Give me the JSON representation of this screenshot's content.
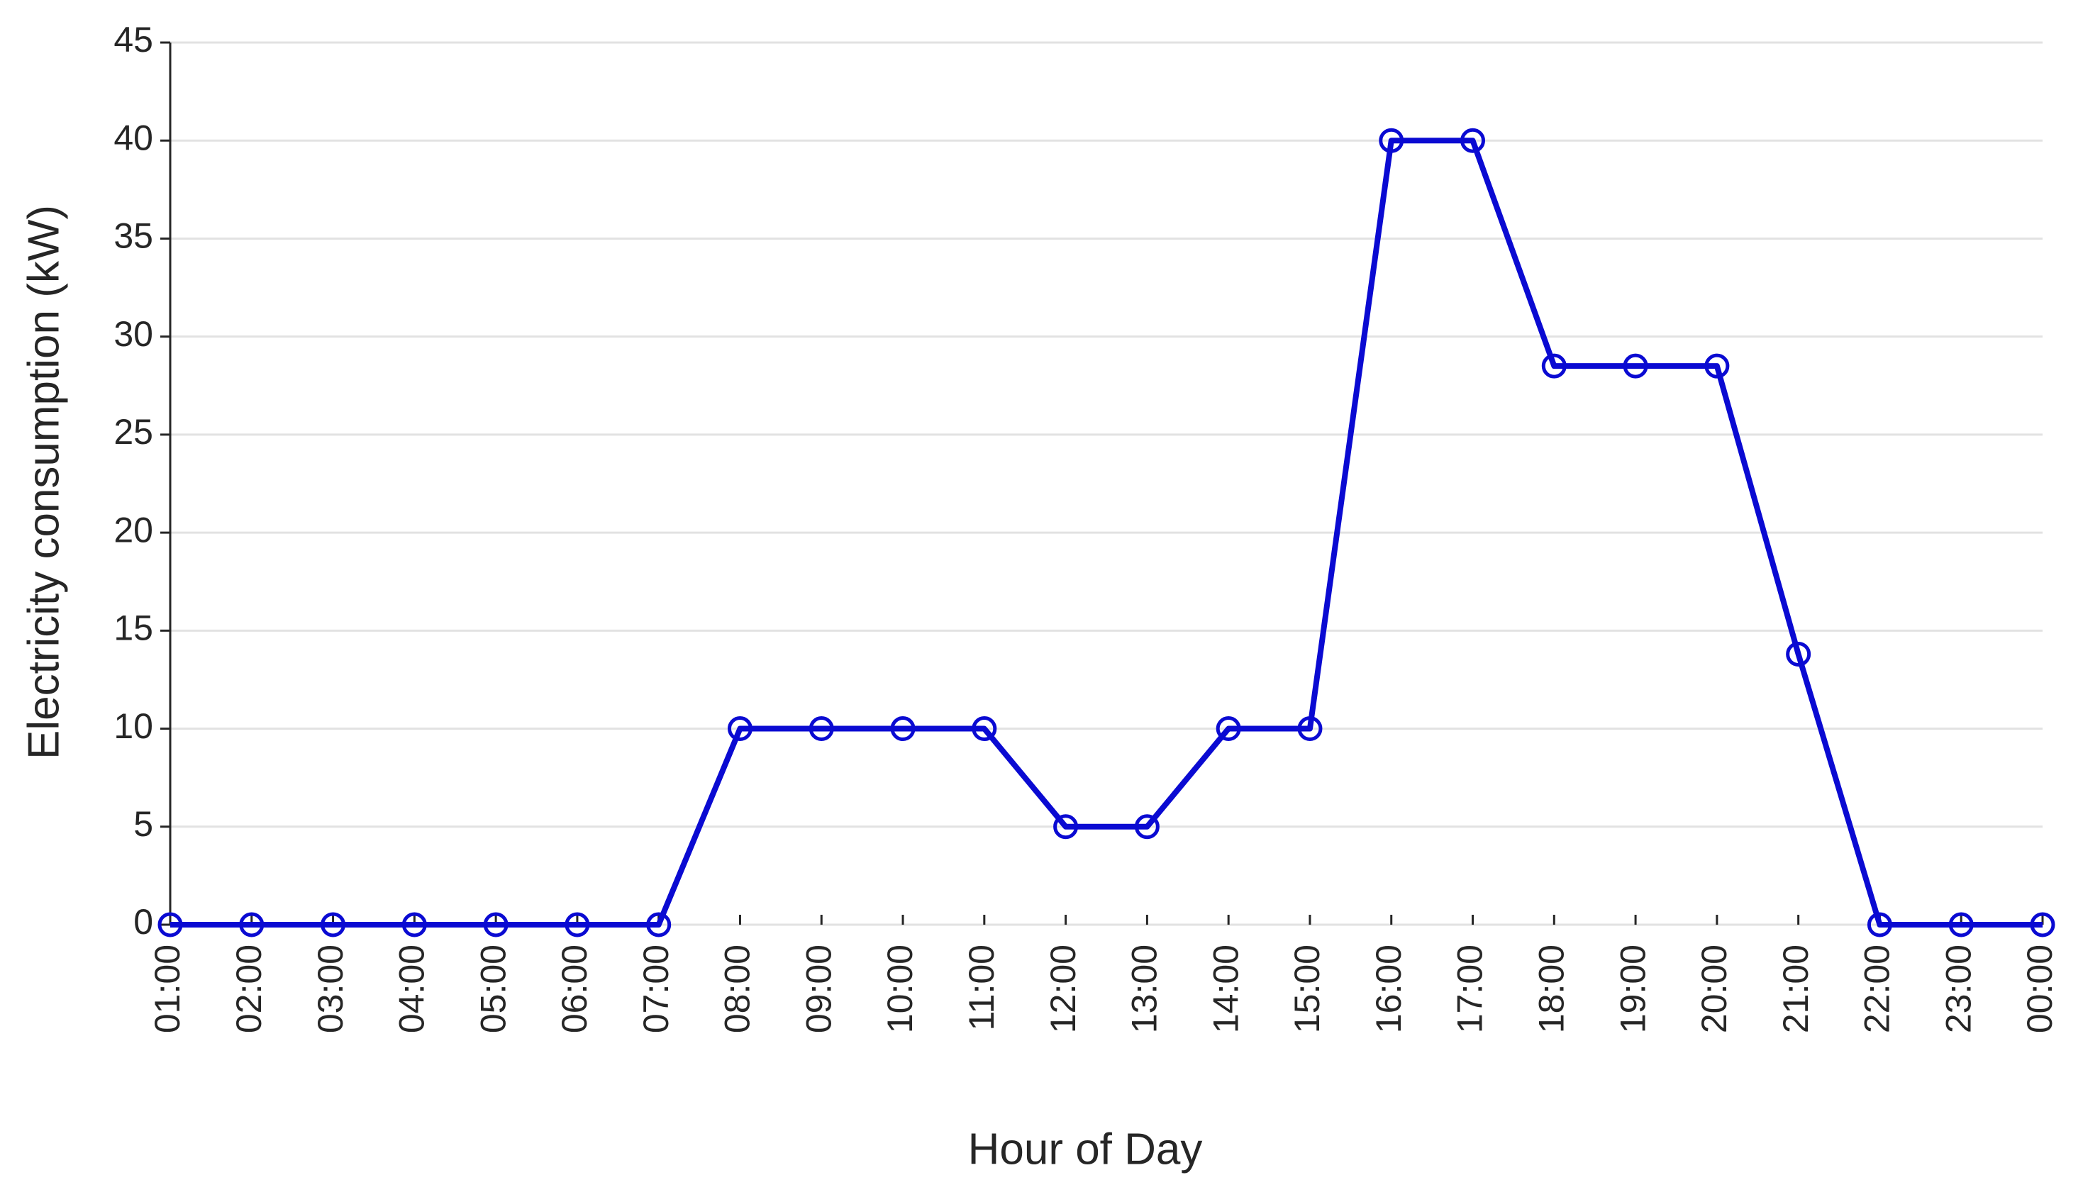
{
  "chart_data": {
    "type": "line",
    "x_label": "Hour of Day",
    "y_label": "Electricity consumption (kW)",
    "categories": [
      "01:00",
      "02:00",
      "03:00",
      "04:00",
      "05:00",
      "06:00",
      "07:00",
      "08:00",
      "09:00",
      "10:00",
      "11:00",
      "12:00",
      "13:00",
      "14:00",
      "15:00",
      "16:00",
      "17:00",
      "18:00",
      "19:00",
      "20:00",
      "21:00",
      "22:00",
      "23:00",
      "00:00"
    ],
    "values": [
      0,
      0,
      0,
      0,
      0,
      0,
      0,
      10,
      10,
      10,
      10,
      5,
      5,
      10,
      10,
      40,
      40,
      28.5,
      28.5,
      28.5,
      13.8,
      0,
      0,
      0
    ],
    "color": "#0a0ad2",
    "ylim": [
      0,
      45
    ],
    "yticks": [
      0,
      5,
      10,
      15,
      20,
      25,
      30,
      35,
      40,
      45
    ],
    "grid": true
  }
}
